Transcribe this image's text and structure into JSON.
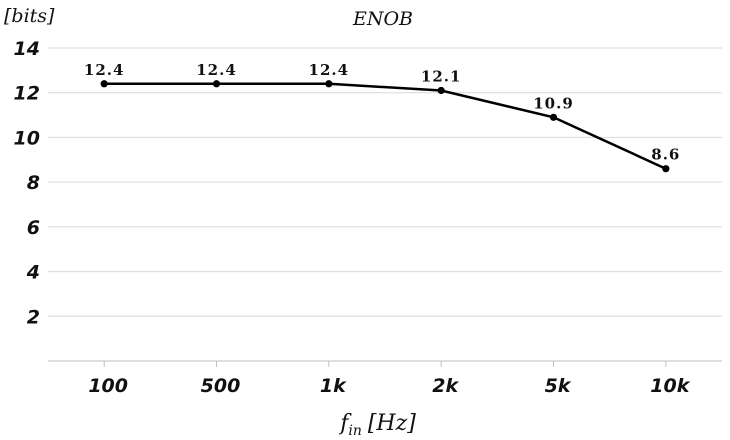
{
  "chart_data": {
    "type": "line",
    "title": "ENOB",
    "ylabel": "[bits]",
    "xlabel": {
      "main": "f",
      "sub": "in",
      "unit": "[Hz]"
    },
    "categories": [
      "100",
      "500",
      "1k",
      "2k",
      "5k",
      "10k"
    ],
    "values": [
      12.4,
      12.4,
      12.4,
      12.1,
      10.9,
      8.6
    ],
    "data_labels": [
      "12.4",
      "12.4",
      "12.4",
      "12.1",
      "10.9",
      "8.6"
    ],
    "yticks": [
      "2",
      "4",
      "6",
      "8",
      "10",
      "12",
      "14"
    ],
    "ylim": [
      0,
      14
    ],
    "grid": true,
    "legend": "none"
  }
}
